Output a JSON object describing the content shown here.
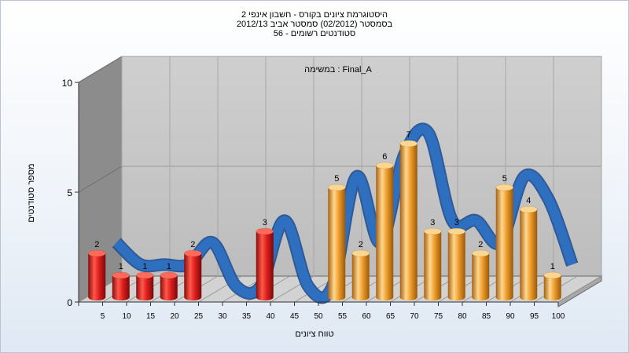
{
  "chart_data": {
    "type": "bar",
    "title_lines": [
      "היסטוגרמת ציונים בקורס - חשבון אינפי 2",
      "בסמסטר  (02/2012)  סמסטר אביב 2012/13",
      "סטודנטים רשומים - 56"
    ],
    "annotation": "במשימה : Final_A",
    "xlabel": "טווח ציונים",
    "ylabel": "מספר סטודנטים",
    "categories": [
      "5",
      "10",
      "15",
      "20",
      "25",
      "30",
      "35",
      "40",
      "45",
      "50",
      "55",
      "60",
      "65",
      "70",
      "75",
      "80",
      "85",
      "90",
      "95",
      "100"
    ],
    "x_tick_labels": [
      "5",
      "10",
      "15",
      "20",
      "25",
      "30",
      "35",
      "40",
      "45",
      "50",
      "55",
      "60",
      "65",
      "70",
      "75",
      "80",
      "85",
      "90",
      "95",
      "100"
    ],
    "values": [
      2,
      1,
      1,
      1,
      2,
      0,
      0,
      3,
      0,
      0,
      5,
      2,
      6,
      7,
      3,
      3,
      2,
      5,
      4,
      1
    ],
    "data_labels": [
      "2",
      "1",
      "1",
      "1",
      "2",
      "",
      "",
      "3",
      "",
      "",
      "5",
      "2",
      "6",
      "7",
      "3",
      "3",
      "2",
      "5",
      "4",
      "1"
    ],
    "bar_colors": [
      "#e02020",
      "#e02020",
      "#e02020",
      "#e02020",
      "#e02020",
      "#e02020",
      "#e02020",
      "#e02020",
      "#e02020",
      "#e02020",
      "#f0a030",
      "#f0a030",
      "#f0a030",
      "#f0a030",
      "#f0a030",
      "#f0a030",
      "#f0a030",
      "#f0a030",
      "#f0a030",
      "#f0a030"
    ],
    "trend_color": "#2f6fc0",
    "y_ticks": [
      "0",
      "5",
      "10"
    ],
    "ylim": [
      0,
      10
    ],
    "grid": true
  }
}
